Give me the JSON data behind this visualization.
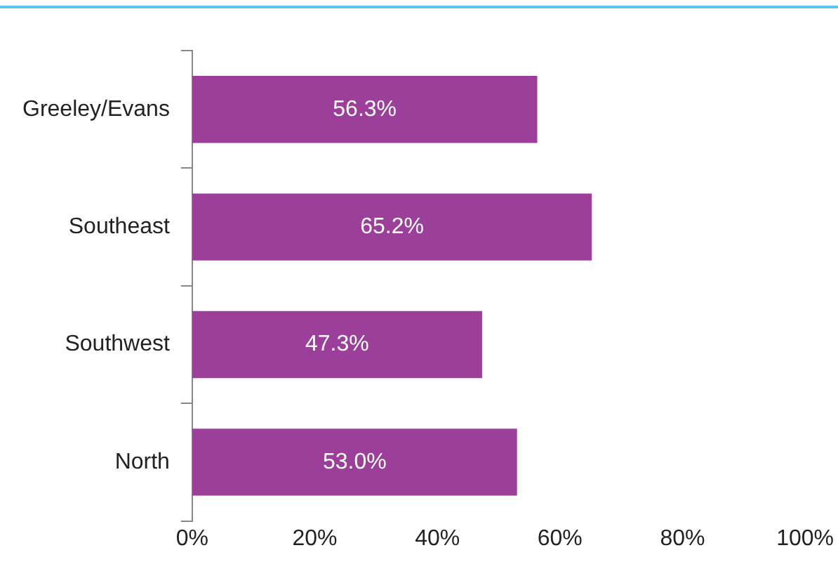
{
  "chart_data": {
    "type": "bar",
    "orientation": "horizontal",
    "categories": [
      "Greeley/Evans",
      "Southeast",
      "Southwest",
      "North"
    ],
    "values": [
      56.3,
      65.2,
      47.3,
      53.0
    ],
    "color": "#9b3f9b",
    "value_labels": [
      "56.3%",
      "65.2%",
      "47.3%",
      "53.0%"
    ],
    "xlim": [
      0,
      100
    ],
    "xticks": [
      {
        "value": 0,
        "label": "0%"
      },
      {
        "value": 20,
        "label": "20%"
      },
      {
        "value": 40,
        "label": "40%"
      },
      {
        "value": 60,
        "label": "60%"
      },
      {
        "value": 80,
        "label": "80%"
      },
      {
        "value": 100,
        "label": "100%"
      }
    ],
    "grid": false,
    "legend": false
  }
}
